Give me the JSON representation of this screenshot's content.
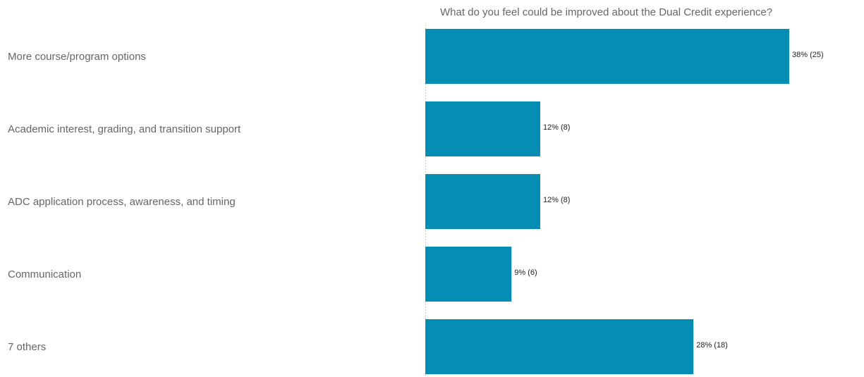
{
  "chart_data": {
    "type": "bar",
    "orientation": "horizontal",
    "title": "What do you feel could be improved about the Dual Credit experience?",
    "categories": [
      "More course/program options",
      "Academic interest, grading, and transition support",
      "ADC application process, awareness, and timing",
      "Communication",
      "7 others"
    ],
    "values": [
      38,
      12,
      12,
      9,
      28
    ],
    "value_unit": "%",
    "counts": [
      25,
      8,
      8,
      6,
      18
    ],
    "data_labels": [
      "38% (25)",
      "12% (8)",
      "12% (8)",
      "9% (6)",
      "28% (18)"
    ],
    "xlim": [
      0,
      38
    ],
    "grid": false,
    "legend": "none",
    "colors": {
      "bar": "#058DB3",
      "axis": "#CCCCCC",
      "label": "#666666"
    }
  }
}
